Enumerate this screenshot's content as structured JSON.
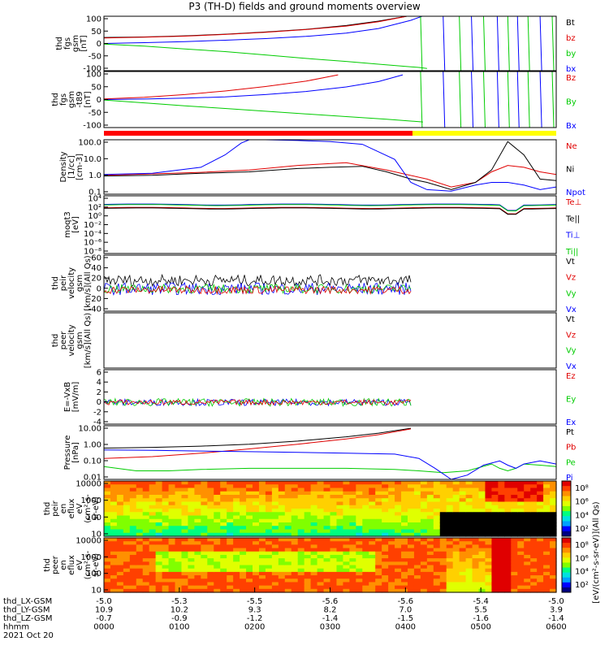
{
  "title": "P3 (TH-D) fields and ground moments overview",
  "colors": {
    "black": "#000000",
    "red": "#e00000",
    "green": "#00cc00",
    "blue": "#0000ff",
    "bar_red": "#ff0000",
    "bar_yellow": "#ffff00"
  },
  "chart_data": [
    {
      "type": "line",
      "panel": "fgs_gsm",
      "ylabel_lines": [
        "thd",
        "fgs",
        "gsm",
        "[nT]"
      ],
      "yticks": [
        "100",
        "50",
        "0",
        "-50",
        "-100"
      ],
      "ylim": [
        -100,
        100
      ],
      "legend": [
        {
          "name": "Bt",
          "color": "#000000"
        },
        {
          "name": "bz",
          "color": "#e00000"
        },
        {
          "name": "by",
          "color": "#00cc00"
        },
        {
          "name": "bx",
          "color": "#0000ff"
        }
      ],
      "series": [
        {
          "name": "Bt",
          "x": [
            0,
            50,
            100,
            150,
            200,
            250,
            300,
            340,
            375
          ],
          "y": [
            22,
            24,
            28,
            34,
            42,
            52,
            66,
            82,
            100
          ]
        },
        {
          "name": "bz",
          "x": [
            0,
            50,
            100,
            150,
            200,
            250,
            300,
            340,
            375
          ],
          "y": [
            20,
            23,
            27,
            33,
            41,
            51,
            64,
            80,
            100
          ]
        },
        {
          "name": "by",
          "x": [
            0,
            50,
            100,
            150,
            200,
            250,
            300,
            340,
            390,
            400
          ],
          "y": [
            -2,
            -10,
            -20,
            -30,
            -42,
            -55,
            -66,
            -76,
            -88,
            -92
          ]
        },
        {
          "name": "bx",
          "x": [
            0,
            50,
            100,
            150,
            200,
            250,
            300,
            340,
            380,
            394
          ],
          "y": [
            0,
            3,
            7,
            12,
            18,
            26,
            38,
            55,
            85,
            100
          ]
        }
      ]
    },
    {
      "type": "line",
      "panel": "fgs_gsm_t89",
      "ylabel_lines": [
        "thd",
        "fgs",
        "gsm",
        "-t89",
        "[nT]"
      ],
      "yticks": [
        "100",
        "50",
        "0",
        "-50",
        "-100"
      ],
      "ylim": [
        -125,
        125
      ],
      "legend": [
        {
          "name": "Bz",
          "color": "#e00000"
        },
        {
          "name": "By",
          "color": "#00cc00"
        },
        {
          "name": "Bx",
          "color": "#0000ff"
        }
      ],
      "series": [
        {
          "name": "Bz",
          "x": [
            0,
            50,
            100,
            150,
            200,
            250,
            290
          ],
          "y": [
            3,
            10,
            22,
            38,
            58,
            82,
            110
          ]
        },
        {
          "name": "By",
          "x": [
            0,
            50,
            100,
            150,
            200,
            250,
            300,
            350,
            395
          ],
          "y": [
            -2,
            -15,
            -28,
            -40,
            -52,
            -64,
            -76,
            -88,
            -100
          ]
        },
        {
          "name": "Bx",
          "x": [
            0,
            50,
            100,
            150,
            200,
            250,
            300,
            340,
            370
          ],
          "y": [
            0,
            2,
            6,
            12,
            22,
            36,
            56,
            80,
            110
          ]
        }
      ]
    },
    {
      "type": "line",
      "panel": "density",
      "log": true,
      "ylabel_lines": [
        "Density",
        "[1/cc]",
        "[cm-3]"
      ],
      "yticks": [
        "100.0",
        "10.0",
        "1.0",
        "0.1"
      ],
      "ylim": [
        0.05,
        200
      ],
      "legend": [
        {
          "name": "Ne",
          "color": "#e00000"
        },
        {
          "name": "Ni",
          "color": "#000000"
        },
        {
          "name": "Npot",
          "color": "#0000ff"
        }
      ],
      "series": [
        {
          "name": "Ne",
          "x": [
            0,
            60,
            120,
            180,
            240,
            300,
            350,
            400,
            430,
            460,
            480,
            500,
            520,
            540,
            560
          ],
          "y": [
            0.9,
            1.1,
            1.4,
            2,
            4,
            6,
            2,
            0.5,
            0.15,
            0.3,
            1.5,
            4,
            3,
            1.5,
            1
          ]
        },
        {
          "name": "Ni",
          "x": [
            0,
            60,
            120,
            180,
            240,
            280,
            320,
            350,
            380,
            400,
            430,
            460,
            480,
            500,
            520,
            540,
            560
          ],
          "y": [
            0.8,
            0.9,
            1.2,
            1.5,
            2.5,
            3,
            3.5,
            1.5,
            0.5,
            0.3,
            0.1,
            0.3,
            2,
            150,
            20,
            0.5,
            0.4
          ]
        },
        {
          "name": "Npot",
          "x": [
            0,
            60,
            120,
            150,
            170,
            180,
            200,
            240,
            280,
            320,
            360,
            380,
            400,
            430,
            460,
            480,
            500,
            520,
            540,
            560
          ],
          "y": [
            1,
            1.2,
            3,
            20,
            120,
            200,
            200,
            180,
            150,
            100,
            10,
            0.3,
            0.1,
            0.08,
            0.2,
            0.3,
            0.3,
            0.2,
            0.1,
            0.15
          ]
        }
      ]
    },
    {
      "type": "line",
      "panel": "moqt3",
      "log": true,
      "ylabel_lines": [
        "moqt3",
        "[eV]"
      ],
      "yticks": [
        "10⁴",
        "10²",
        "10⁰",
        "10⁻²",
        "10⁻⁴",
        "10⁻⁶",
        "10⁻⁸"
      ],
      "ylim": [
        1e-09,
        100000.0
      ],
      "legend": [
        {
          "name": "Te⊥",
          "color": "#e00000"
        },
        {
          "name": "Te||",
          "color": "#000000"
        },
        {
          "name": "Ti⊥",
          "color": "#0000ff"
        },
        {
          "name": "Ti||",
          "color": "#00cc00"
        }
      ]
    },
    {
      "type": "line",
      "panel": "peir_velocity",
      "ylabel_lines": [
        "thd",
        "peir",
        "velocity",
        "gsm",
        "[km/s](All Qs)"
      ],
      "yticks": [
        "60",
        "40",
        "20",
        "0",
        "-20",
        "-40"
      ],
      "ylim": [
        -40,
        60
      ],
      "legend": [
        {
          "name": "Vt",
          "color": "#000000"
        },
        {
          "name": "Vz",
          "color": "#e00000"
        },
        {
          "name": "Vy",
          "color": "#00cc00"
        },
        {
          "name": "Vx",
          "color": "#0000ff"
        }
      ]
    },
    {
      "type": "line",
      "panel": "peer_velocity",
      "ylabel_lines": [
        "thd",
        "peer",
        "velocity",
        "gsm",
        "[km/s](All Qs)"
      ],
      "yticks": [],
      "ylim": [
        0,
        1
      ],
      "legend": [
        {
          "name": "Vt",
          "color": "#000000"
        },
        {
          "name": "Vz",
          "color": "#e00000"
        },
        {
          "name": "Vy",
          "color": "#00cc00"
        },
        {
          "name": "Vx",
          "color": "#0000ff"
        }
      ]
    },
    {
      "type": "line",
      "panel": "efield",
      "ylabel_lines": [
        "E=-VxB",
        "[mV/m]"
      ],
      "yticks": [
        "6",
        "4",
        "2",
        "0",
        "-2",
        "-4"
      ],
      "ylim": [
        -4,
        6
      ],
      "legend": [
        {
          "name": "Ez",
          "color": "#e00000"
        },
        {
          "name": "Ey",
          "color": "#00cc00"
        },
        {
          "name": "Ex",
          "color": "#0000ff"
        }
      ]
    },
    {
      "type": "line",
      "panel": "pressure",
      "log": true,
      "ylabel_lines": [
        "Pressure",
        "[nPa]"
      ],
      "yticks": [
        "10.00",
        "1.00",
        "0.10",
        "0.01"
      ],
      "ylim": [
        0.005,
        30
      ],
      "legend": [
        {
          "name": "Pt",
          "color": "#000000"
        },
        {
          "name": "Pb",
          "color": "#e00000"
        },
        {
          "name": "Pe",
          "color": "#00cc00"
        },
        {
          "name": "Pi",
          "color": "#0000ff"
        }
      ],
      "series": [
        {
          "name": "Pt",
          "x": [
            0,
            60,
            120,
            180,
            240,
            300,
            340,
            380
          ],
          "y": [
            0.8,
            0.9,
            1.1,
            1.5,
            2.5,
            5,
            9,
            20
          ]
        },
        {
          "name": "Pb",
          "x": [
            0,
            60,
            120,
            180,
            240,
            300,
            340,
            380
          ],
          "y": [
            0.15,
            0.2,
            0.35,
            0.7,
            1.5,
            3.5,
            7,
            18
          ]
        },
        {
          "name": "Pe",
          "x": [
            0,
            40,
            80,
            120,
            180,
            240,
            300,
            360,
            390,
            420,
            450,
            480,
            490,
            500,
            510,
            520,
            540,
            560
          ],
          "y": [
            0.04,
            0.02,
            0.02,
            0.025,
            0.03,
            0.03,
            0.03,
            0.025,
            0.02,
            0.015,
            0.02,
            0.06,
            0.03,
            0.02,
            0.03,
            0.06,
            0.05,
            0.04
          ]
        },
        {
          "name": "Pi",
          "x": [
            0,
            60,
            120,
            180,
            240,
            300,
            360,
            390,
            410,
            430,
            450,
            470,
            490,
            500,
            510,
            520,
            540,
            560
          ],
          "y": [
            0.6,
            0.55,
            0.5,
            0.45,
            0.4,
            0.35,
            0.3,
            0.15,
            0.03,
            0.005,
            0.01,
            0.05,
            0.1,
            0.05,
            0.03,
            0.06,
            0.1,
            0.06
          ]
        }
      ]
    },
    {
      "type": "heatmap",
      "panel": "peir_eflux",
      "ylabel_lines": [
        "thd",
        "peir",
        "en",
        "eflux",
        "eV",
        "(cm²-s-",
        "sr-eV)"
      ],
      "yticks": [
        "10000",
        "1000",
        "100",
        "10"
      ],
      "colorbar_label": "[eV/(cm²-s-sr-eV)](All Qs)",
      "colorbar_ticks": [
        "10⁸",
        "10⁶",
        "10⁴",
        "10²"
      ]
    },
    {
      "type": "heatmap",
      "panel": "peer_eflux",
      "ylabel_lines": [
        "thd",
        "peer",
        "en",
        "eflux",
        "eV",
        "(cm²-s-",
        "sr-eV)"
      ],
      "yticks": [
        "10000",
        "1000",
        "100",
        "10"
      ],
      "colorbar_label": "[eV/(cm²-s-sr-eV)](All Qs)",
      "colorbar_ticks": [
        "10⁸",
        "10⁶",
        "10⁴",
        "10²"
      ]
    }
  ],
  "xaxis": {
    "row_labels": [
      "thd_LX-GSM",
      "thd_LY-GSM",
      "thd_LZ-GSM",
      "hhmm",
      "2021 Oct 20"
    ],
    "rows": [
      [
        "-5.0",
        "-5.3",
        "-5.5",
        "-5.6",
        "-5.6",
        "-5.4",
        "-5.0"
      ],
      [
        "10.9",
        "10.2",
        "9.3",
        "8.2",
        "7.0",
        "5.5",
        "3.9"
      ],
      [
        "-0.7",
        "-0.9",
        "-1.2",
        "-1.4",
        "-1.5",
        "-1.6",
        "-1.4"
      ],
      [
        "0000",
        "0100",
        "0200",
        "0300",
        "0400",
        "0500",
        "0600"
      ]
    ]
  }
}
